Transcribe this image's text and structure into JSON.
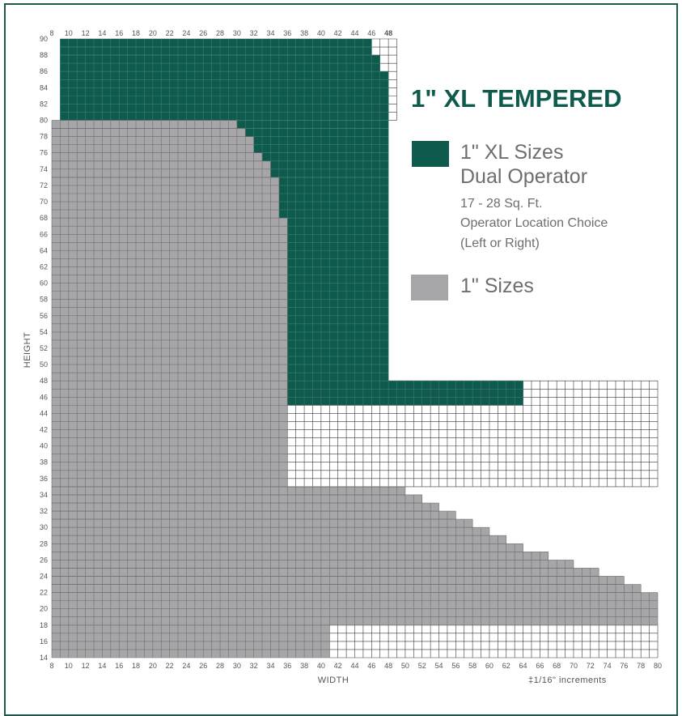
{
  "title": "1\" XL TEMPERED",
  "legend": [
    {
      "label": "1\" XL Sizes",
      "label2": "Dual Operator",
      "notes": [
        "17 - 28 Sq. Ft.",
        "Operator Location Choice",
        "(Left or Right)"
      ],
      "color": "#0e5a4d"
    },
    {
      "label": "1\" Sizes",
      "color": "#a6a6a8"
    }
  ],
  "footnote": "‡1/16\" increments",
  "chart_data": {
    "type": "heatmap",
    "xlabel": "WIDTH",
    "ylabel": "HEIGHT",
    "xlim": [
      8,
      80
    ],
    "ylim": [
      14,
      90
    ],
    "bottom_x_ticks": [
      "8",
      "10",
      "12",
      "14",
      "16",
      "18",
      "20",
      "22",
      "24",
      "26",
      "28",
      "30",
      "32",
      "34",
      "36",
      "38",
      "40",
      "42",
      "44",
      "46",
      "48",
      "50",
      "52",
      "54",
      "56",
      "58",
      "60",
      "62",
      "64",
      "66",
      "68",
      "70",
      "72",
      "74",
      "76",
      "78",
      "80"
    ],
    "top_x_ticks": [
      "8",
      "10",
      "12",
      "14",
      "16",
      "18",
      "20",
      "22",
      "24",
      "26",
      "28",
      "30",
      "32",
      "34",
      "36",
      "38",
      "40",
      "42",
      "44",
      "46",
      "48"
    ],
    "y_ticks": [
      "14",
      "16",
      "18",
      "20",
      "22",
      "24",
      "26",
      "28",
      "30",
      "32",
      "34",
      "36",
      "38",
      "40",
      "42",
      "44",
      "46",
      "48",
      "50",
      "52",
      "54",
      "56",
      "58",
      "60",
      "62",
      "64",
      "66",
      "68",
      "70",
      "72",
      "74",
      "76",
      "78",
      "80",
      "82",
      "84",
      "86",
      "88",
      "90"
    ],
    "grid_cells": "1x1 inch",
    "series": [
      {
        "name": "1\" XL Sizes",
        "color": "#0e5a4d",
        "width_ranges_by_height": [
          {
            "height": [
              80,
              90
            ],
            "width_max": [
              46,
              46,
              46,
              47,
              47,
              48,
              48,
              48,
              48,
              48
            ]
          },
          {
            "height": [
              76,
              80
            ],
            "width_max": 48
          },
          {
            "height": [
              68,
              76
            ],
            "width_max": 48
          },
          {
            "height": [
              48,
              68
            ],
            "width_max": 48
          },
          {
            "height": [
              46,
              48
            ],
            "width_max": 64
          }
        ],
        "regions": [
          {
            "h_from": 89,
            "h_to": 90,
            "w_from": 9,
            "w_to": 46
          },
          {
            "h_from": 88,
            "h_to": 89,
            "w_from": 9,
            "w_to": 46
          },
          {
            "h_from": 87,
            "h_to": 88,
            "w_from": 9,
            "w_to": 47
          },
          {
            "h_from": 86,
            "h_to": 87,
            "w_from": 9,
            "w_to": 47
          },
          {
            "h_from": 85,
            "h_to": 86,
            "w_from": 9,
            "w_to": 48
          },
          {
            "h_from": 80,
            "h_to": 85,
            "w_from": 9,
            "w_to": 48
          },
          {
            "h_from": 79,
            "h_to": 80,
            "w_from": 30,
            "w_to": 48
          },
          {
            "h_from": 78,
            "h_to": 79,
            "w_from": 31,
            "w_to": 48
          },
          {
            "h_from": 76,
            "h_to": 78,
            "w_from": 32,
            "w_to": 48
          },
          {
            "h_from": 75,
            "h_to": 76,
            "w_from": 33,
            "w_to": 48
          },
          {
            "h_from": 73,
            "h_to": 75,
            "w_from": 34,
            "w_to": 48
          },
          {
            "h_from": 68,
            "h_to": 73,
            "w_from": 35,
            "w_to": 48
          },
          {
            "h_from": 67,
            "h_to": 68,
            "w_from": 36,
            "w_to": 48
          },
          {
            "h_from": 48,
            "h_to": 67,
            "w_from": 36,
            "w_to": 48
          },
          {
            "h_from": 45,
            "h_to": 48,
            "w_from": 36,
            "w_to": 64
          }
        ]
      },
      {
        "name": "1\" Sizes",
        "color": "#a6a6a8",
        "regions": [
          {
            "h_from": 79,
            "h_to": 80,
            "w_from": 8,
            "w_to": 30
          },
          {
            "h_from": 78,
            "h_to": 79,
            "w_from": 8,
            "w_to": 31
          },
          {
            "h_from": 76,
            "h_to": 78,
            "w_from": 8,
            "w_to": 32
          },
          {
            "h_from": 75,
            "h_to": 76,
            "w_from": 8,
            "w_to": 33
          },
          {
            "h_from": 73,
            "h_to": 75,
            "w_from": 8,
            "w_to": 34
          },
          {
            "h_from": 68,
            "h_to": 73,
            "w_from": 8,
            "w_to": 35
          },
          {
            "h_from": 35,
            "h_to": 68,
            "w_from": 8,
            "w_to": 36
          },
          {
            "h_from": 34,
            "h_to": 35,
            "w_from": 8,
            "w_to": 50
          },
          {
            "h_from": 33,
            "h_to": 34,
            "w_from": 8,
            "w_to": 52
          },
          {
            "h_from": 32,
            "h_to": 33,
            "w_from": 8,
            "w_to": 54
          },
          {
            "h_from": 31,
            "h_to": 32,
            "w_from": 8,
            "w_to": 56
          },
          {
            "h_from": 30,
            "h_to": 31,
            "w_from": 8,
            "w_to": 58
          },
          {
            "h_from": 29,
            "h_to": 30,
            "w_from": 8,
            "w_to": 60
          },
          {
            "h_from": 28,
            "h_to": 29,
            "w_from": 8,
            "w_to": 62
          },
          {
            "h_from": 27,
            "h_to": 28,
            "w_from": 8,
            "w_to": 64
          },
          {
            "h_from": 26,
            "h_to": 27,
            "w_from": 8,
            "w_to": 67
          },
          {
            "h_from": 25,
            "h_to": 26,
            "w_from": 8,
            "w_to": 70
          },
          {
            "h_from": 24,
            "h_to": 25,
            "w_from": 8,
            "w_to": 73
          },
          {
            "h_from": 23,
            "h_to": 24,
            "w_from": 8,
            "w_to": 76
          },
          {
            "h_from": 22,
            "h_to": 23,
            "w_from": 8,
            "w_to": 78
          },
          {
            "h_from": 18,
            "h_to": 22,
            "w_from": 8,
            "w_to": 80
          },
          {
            "h_from": 14,
            "h_to": 18,
            "w_from": 8,
            "w_to": 41
          }
        ]
      }
    ],
    "outline_regions": [
      {
        "h_from": 80,
        "h_to": 90,
        "w_from": 46,
        "w_to": 49
      },
      {
        "h_from": 35,
        "h_to": 48,
        "w_from": 36,
        "w_to": 80
      },
      {
        "h_from": 14,
        "h_to": 18,
        "w_from": 41,
        "w_to": 80
      }
    ]
  }
}
